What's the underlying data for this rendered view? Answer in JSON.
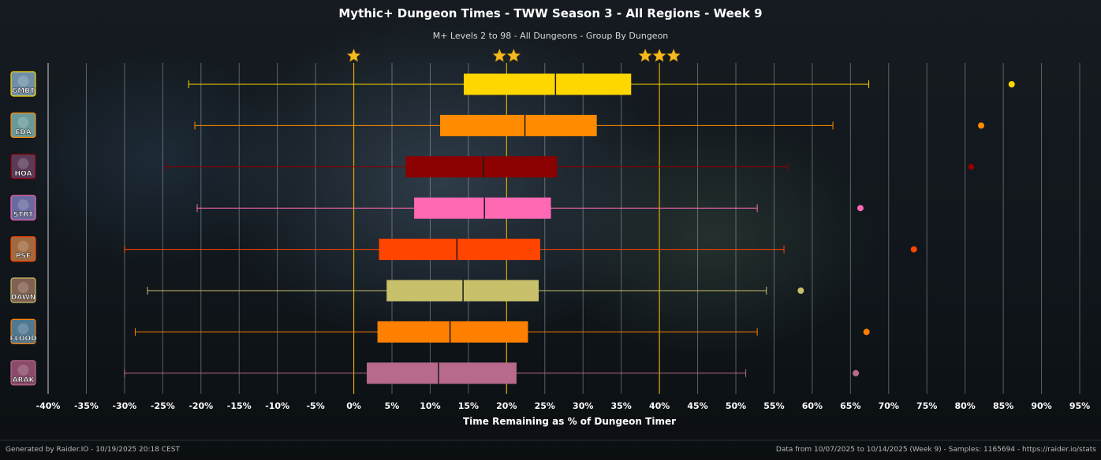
{
  "chart_data": {
    "type": "boxplot",
    "title": "Mythic+ Dungeon Times - TWW Season 3 - All Regions - Week 9",
    "subtitle": "M+ Levels 2 to 98 - All Dungeons - Group By Dungeon",
    "xlabel": "Time Remaining as % of Dungeon Timer",
    "xlim": [
      -40,
      95
    ],
    "x_ticks": [
      "-40%",
      "-35%",
      "-30%",
      "-25%",
      "-20%",
      "-15%",
      "-10%",
      "-5%",
      "0%",
      "5%",
      "10%",
      "15%",
      "20%",
      "25%",
      "30%",
      "35%",
      "40%",
      "45%",
      "50%",
      "55%",
      "60%",
      "65%",
      "70%",
      "75%",
      "80%",
      "85%",
      "90%",
      "95%"
    ],
    "x_tick_values": [
      -40,
      -35,
      -30,
      -25,
      -20,
      -15,
      -10,
      -5,
      0,
      5,
      10,
      15,
      20,
      25,
      30,
      35,
      40,
      45,
      50,
      55,
      60,
      65,
      70,
      75,
      80,
      85,
      90,
      95
    ],
    "star_markers": [
      {
        "x": 0,
        "stars": 1
      },
      {
        "x": 20,
        "stars": 2
      },
      {
        "x": 40,
        "stars": 3
      }
    ],
    "star_color": "#f5b921",
    "grid": true,
    "series": [
      {
        "name": "GMBT",
        "color": "#ffd700",
        "icon_color": "#6f8fa8",
        "whisker_low": -21.6,
        "q1": 14.4,
        "median": 26.4,
        "q3": 36.3,
        "whisker_high": 67.4,
        "outlier": 86.1
      },
      {
        "name": "EDA",
        "color": "#ff8c00",
        "icon_color": "#6a9a98",
        "whisker_low": -20.8,
        "q1": 11.3,
        "median": 22.4,
        "q3": 31.8,
        "whisker_high": 62.7,
        "outlier": 82.1
      },
      {
        "name": "HOA",
        "color": "#8b0000",
        "icon_color": "#5a3a58",
        "whisker_low": -24.6,
        "q1": 6.8,
        "median": 17.0,
        "q3": 26.6,
        "whisker_high": 56.8,
        "outlier": 80.8
      },
      {
        "name": "STRT",
        "color": "#ff69b4",
        "icon_color": "#6a6aa0",
        "whisker_low": -20.5,
        "q1": 7.9,
        "median": 17.1,
        "q3": 25.8,
        "whisker_high": 52.8,
        "outlier": 66.3
      },
      {
        "name": "PSF",
        "color": "#ff4500",
        "icon_color": "#a06a40",
        "whisker_low": -30.0,
        "q1": 3.3,
        "median": 13.5,
        "q3": 24.4,
        "whisker_high": 56.3,
        "outlier": 73.3
      },
      {
        "name": "DAWN",
        "color": "#c8c06a",
        "icon_color": "#806050",
        "whisker_low": -27.0,
        "q1": 4.3,
        "median": 14.3,
        "q3": 24.2,
        "whisker_high": 54.0,
        "outlier": 58.5
      },
      {
        "name": "FLOOD",
        "color": "#ff8000",
        "icon_color": "#507890",
        "whisker_low": -28.6,
        "q1": 3.1,
        "median": 12.6,
        "q3": 22.8,
        "whisker_high": 52.8,
        "outlier": 67.1
      },
      {
        "name": "ARAK",
        "color": "#b86a8c",
        "icon_color": "#8a4a6a",
        "whisker_low": -30.0,
        "q1": 1.7,
        "median": 11.1,
        "q3": 21.3,
        "whisker_high": 51.3,
        "outlier": 65.7
      }
    ]
  },
  "footer": {
    "left": "Generated by Raider.IO - 10/19/2025 20:18 CEST",
    "right": "Data from 10/07/2025 to 10/14/2025 (Week 9) - Samples: 1165694 - https://raider.io/stats"
  }
}
